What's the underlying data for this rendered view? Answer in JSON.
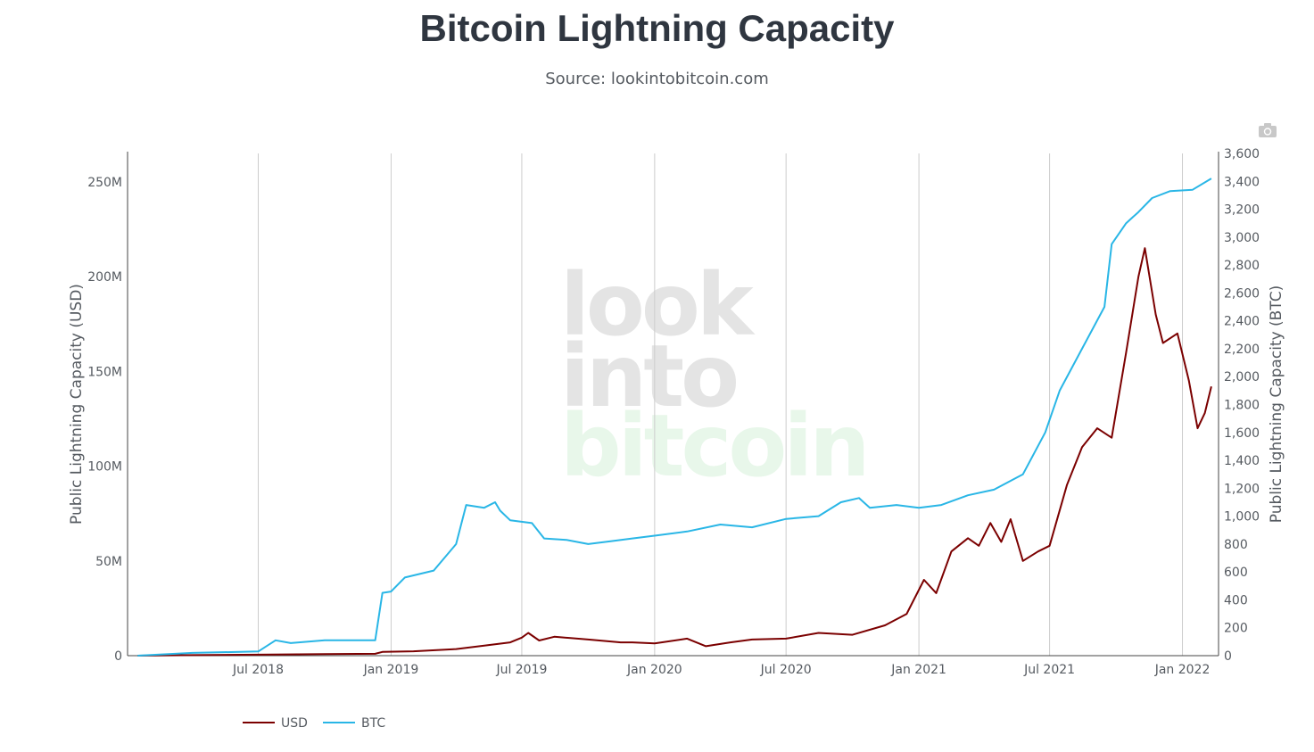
{
  "title": "Bitcoin Lightning Capacity",
  "subtitle": "Source: lookintobitcoin.com",
  "toolbar": {
    "icon": "camera-icon"
  },
  "watermark": {
    "line1": "look",
    "line2": "into",
    "line3": "bitcoin",
    "color_main": "#e4e4e4",
    "color_accent": "#e8f7ea"
  },
  "chart_data": {
    "type": "line",
    "title": "Bitcoin Lightning Capacity",
    "x_range": [
      "2018-01-01",
      "2022-02-20"
    ],
    "x_ticks": [
      {
        "date": "2018-07-01",
        "label": "Jul 2018"
      },
      {
        "date": "2019-01-01",
        "label": "Jan 2019"
      },
      {
        "date": "2019-07-01",
        "label": "Jul 2019"
      },
      {
        "date": "2020-01-01",
        "label": "Jan 2020"
      },
      {
        "date": "2020-07-01",
        "label": "Jul 2020"
      },
      {
        "date": "2021-01-01",
        "label": "Jan 2021"
      },
      {
        "date": "2021-07-01",
        "label": "Jul 2021"
      },
      {
        "date": "2022-01-01",
        "label": "Jan 2022"
      }
    ],
    "y_left": {
      "title": "Public Lightning Capacity (USD)",
      "range": [
        0,
        265000000
      ],
      "ticks": [
        {
          "value": 0,
          "label": "0"
        },
        {
          "value": 50000000,
          "label": "50M"
        },
        {
          "value": 100000000,
          "label": "100M"
        },
        {
          "value": 150000000,
          "label": "150M"
        },
        {
          "value": 200000000,
          "label": "200M"
        },
        {
          "value": 250000000,
          "label": "250M"
        }
      ]
    },
    "y_right": {
      "title": "Public Lightning Capacity (BTC)",
      "range": [
        0,
        3600
      ],
      "ticks": [
        {
          "value": 0,
          "label": "0"
        },
        {
          "value": 200,
          "label": "200"
        },
        {
          "value": 400,
          "label": "400"
        },
        {
          "value": 600,
          "label": "600"
        },
        {
          "value": 800,
          "label": "800"
        },
        {
          "value": 1000,
          "label": "1,000"
        },
        {
          "value": 1200,
          "label": "1,200"
        },
        {
          "value": 1400,
          "label": "1,400"
        },
        {
          "value": 1600,
          "label": "1,600"
        },
        {
          "value": 1800,
          "label": "1,800"
        },
        {
          "value": 2000,
          "label": "2,000"
        },
        {
          "value": 2200,
          "label": "2,200"
        },
        {
          "value": 2400,
          "label": "2,400"
        },
        {
          "value": 2600,
          "label": "2,600"
        },
        {
          "value": 2800,
          "label": "2,800"
        },
        {
          "value": 3000,
          "label": "3,000"
        },
        {
          "value": 3200,
          "label": "3,200"
        },
        {
          "value": 3400,
          "label": "3,400"
        },
        {
          "value": 3600,
          "label": "3,600"
        }
      ]
    },
    "grid": "vertical",
    "legend_position": "bottom-left",
    "series": [
      {
        "name": "USD",
        "axis": "left",
        "color": "#7b0000",
        "points": [
          [
            "2018-01-15",
            0
          ],
          [
            "2018-04-01",
            300000
          ],
          [
            "2018-07-01",
            500000
          ],
          [
            "2018-10-01",
            800000
          ],
          [
            "2018-12-10",
            1000000
          ],
          [
            "2018-12-20",
            2000000
          ],
          [
            "2019-02-01",
            2300000
          ],
          [
            "2019-04-01",
            3500000
          ],
          [
            "2019-05-15",
            5500000
          ],
          [
            "2019-06-15",
            7000000
          ],
          [
            "2019-07-01",
            9500000
          ],
          [
            "2019-07-10",
            12000000
          ],
          [
            "2019-07-25",
            8000000
          ],
          [
            "2019-08-15",
            10000000
          ],
          [
            "2019-10-01",
            8500000
          ],
          [
            "2019-11-15",
            7000000
          ],
          [
            "2019-12-01",
            7000000
          ],
          [
            "2020-01-01",
            6500000
          ],
          [
            "2020-02-15",
            9000000
          ],
          [
            "2020-03-12",
            5000000
          ],
          [
            "2020-04-15",
            7000000
          ],
          [
            "2020-05-15",
            8500000
          ],
          [
            "2020-07-01",
            9000000
          ],
          [
            "2020-08-15",
            12000000
          ],
          [
            "2020-10-01",
            11000000
          ],
          [
            "2020-11-15",
            16000000
          ],
          [
            "2020-12-15",
            22000000
          ],
          [
            "2021-01-08",
            40000000
          ],
          [
            "2021-01-25",
            33000000
          ],
          [
            "2021-02-15",
            55000000
          ],
          [
            "2021-03-10",
            62000000
          ],
          [
            "2021-03-25",
            58000000
          ],
          [
            "2021-04-10",
            70000000
          ],
          [
            "2021-04-25",
            60000000
          ],
          [
            "2021-05-08",
            72000000
          ],
          [
            "2021-05-25",
            50000000
          ],
          [
            "2021-06-15",
            55000000
          ],
          [
            "2021-07-01",
            58000000
          ],
          [
            "2021-07-25",
            90000000
          ],
          [
            "2021-08-15",
            110000000
          ],
          [
            "2021-09-05",
            120000000
          ],
          [
            "2021-09-25",
            115000000
          ],
          [
            "2021-10-15",
            160000000
          ],
          [
            "2021-11-01",
            200000000
          ],
          [
            "2021-11-10",
            215000000
          ],
          [
            "2021-11-25",
            180000000
          ],
          [
            "2021-12-05",
            165000000
          ],
          [
            "2021-12-25",
            170000000
          ],
          [
            "2022-01-10",
            145000000
          ],
          [
            "2022-01-22",
            120000000
          ],
          [
            "2022-02-01",
            128000000
          ],
          [
            "2022-02-10",
            142000000
          ]
        ]
      },
      {
        "name": "BTC",
        "axis": "right",
        "color": "#29b6e6",
        "points": [
          [
            "2018-01-15",
            0
          ],
          [
            "2018-04-01",
            20
          ],
          [
            "2018-07-01",
            30
          ],
          [
            "2018-07-25",
            110
          ],
          [
            "2018-08-15",
            90
          ],
          [
            "2018-10-01",
            110
          ],
          [
            "2018-12-10",
            110
          ],
          [
            "2018-12-20",
            450
          ],
          [
            "2019-01-01",
            460
          ],
          [
            "2019-01-20",
            560
          ],
          [
            "2019-03-01",
            610
          ],
          [
            "2019-04-01",
            800
          ],
          [
            "2019-04-15",
            1080
          ],
          [
            "2019-05-10",
            1060
          ],
          [
            "2019-05-25",
            1100
          ],
          [
            "2019-06-01",
            1040
          ],
          [
            "2019-06-15",
            970
          ],
          [
            "2019-07-15",
            950
          ],
          [
            "2019-08-01",
            840
          ],
          [
            "2019-09-01",
            830
          ],
          [
            "2019-10-01",
            800
          ],
          [
            "2019-11-01",
            820
          ],
          [
            "2019-12-01",
            840
          ],
          [
            "2020-01-01",
            860
          ],
          [
            "2020-02-15",
            890
          ],
          [
            "2020-04-01",
            940
          ],
          [
            "2020-05-15",
            920
          ],
          [
            "2020-07-01",
            980
          ],
          [
            "2020-08-15",
            1000
          ],
          [
            "2020-09-15",
            1100
          ],
          [
            "2020-10-10",
            1130
          ],
          [
            "2020-10-25",
            1060
          ],
          [
            "2020-12-01",
            1080
          ],
          [
            "2021-01-01",
            1060
          ],
          [
            "2021-02-01",
            1080
          ],
          [
            "2021-03-10",
            1150
          ],
          [
            "2021-04-15",
            1190
          ],
          [
            "2021-05-25",
            1300
          ],
          [
            "2021-06-25",
            1600
          ],
          [
            "2021-07-15",
            1900
          ],
          [
            "2021-08-15",
            2200
          ],
          [
            "2021-09-15",
            2500
          ],
          [
            "2021-09-25",
            2950
          ],
          [
            "2021-10-15",
            3100
          ],
          [
            "2021-11-01",
            3180
          ],
          [
            "2021-11-20",
            3280
          ],
          [
            "2021-12-15",
            3330
          ],
          [
            "2022-01-15",
            3340
          ],
          [
            "2022-02-10",
            3420
          ]
        ]
      }
    ]
  }
}
